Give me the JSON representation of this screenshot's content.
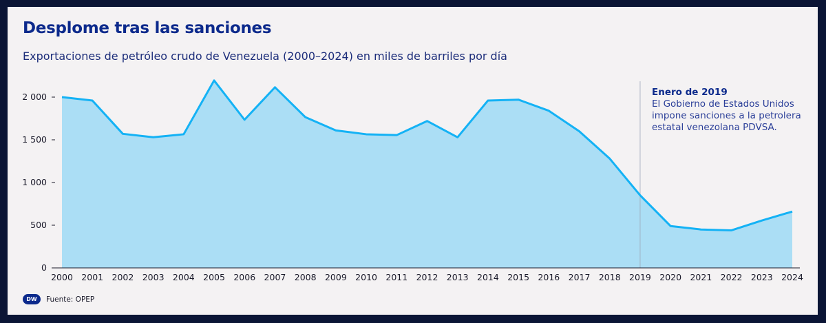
{
  "title": "Desplome tras las sanciones",
  "subtitle": "Exportaciones de petróleo crudo de Venezuela (2000–2024) en miles de barriles por día",
  "annotation": {
    "title": "Enero de 2019",
    "text": "El Gobierno de Estados Unidos impone sanciones a la petrolera estatal venezolana PDVSA.",
    "x": 2019
  },
  "footer": {
    "logo": "DW",
    "source": "Fuente: OPEP"
  },
  "colors": {
    "line": "#14b2f5",
    "area": "#abdef5",
    "title": "#0c2a8c"
  },
  "chart_data": {
    "type": "area",
    "title": "Desplome tras las sanciones",
    "xlabel": "",
    "ylabel": "miles de barriles por día",
    "x": [
      2000,
      2001,
      2002,
      2003,
      2004,
      2005,
      2006,
      2007,
      2008,
      2009,
      2010,
      2011,
      2012,
      2013,
      2014,
      2015,
      2016,
      2017,
      2018,
      2019,
      2020,
      2021,
      2022,
      2023,
      2024
    ],
    "values": [
      2000,
      1960,
      1570,
      1530,
      1565,
      2195,
      1735,
      2115,
      1765,
      1610,
      1565,
      1555,
      1720,
      1530,
      1960,
      1970,
      1840,
      1600,
      1280,
      850,
      490,
      450,
      440,
      555,
      660
    ],
    "ylim": [
      0,
      2200
    ],
    "yticks": [
      0,
      500,
      1000,
      1500,
      2000
    ],
    "ytick_labels": [
      "0",
      "500",
      "1 000",
      "1 500",
      "2 000"
    ],
    "grid": false
  }
}
